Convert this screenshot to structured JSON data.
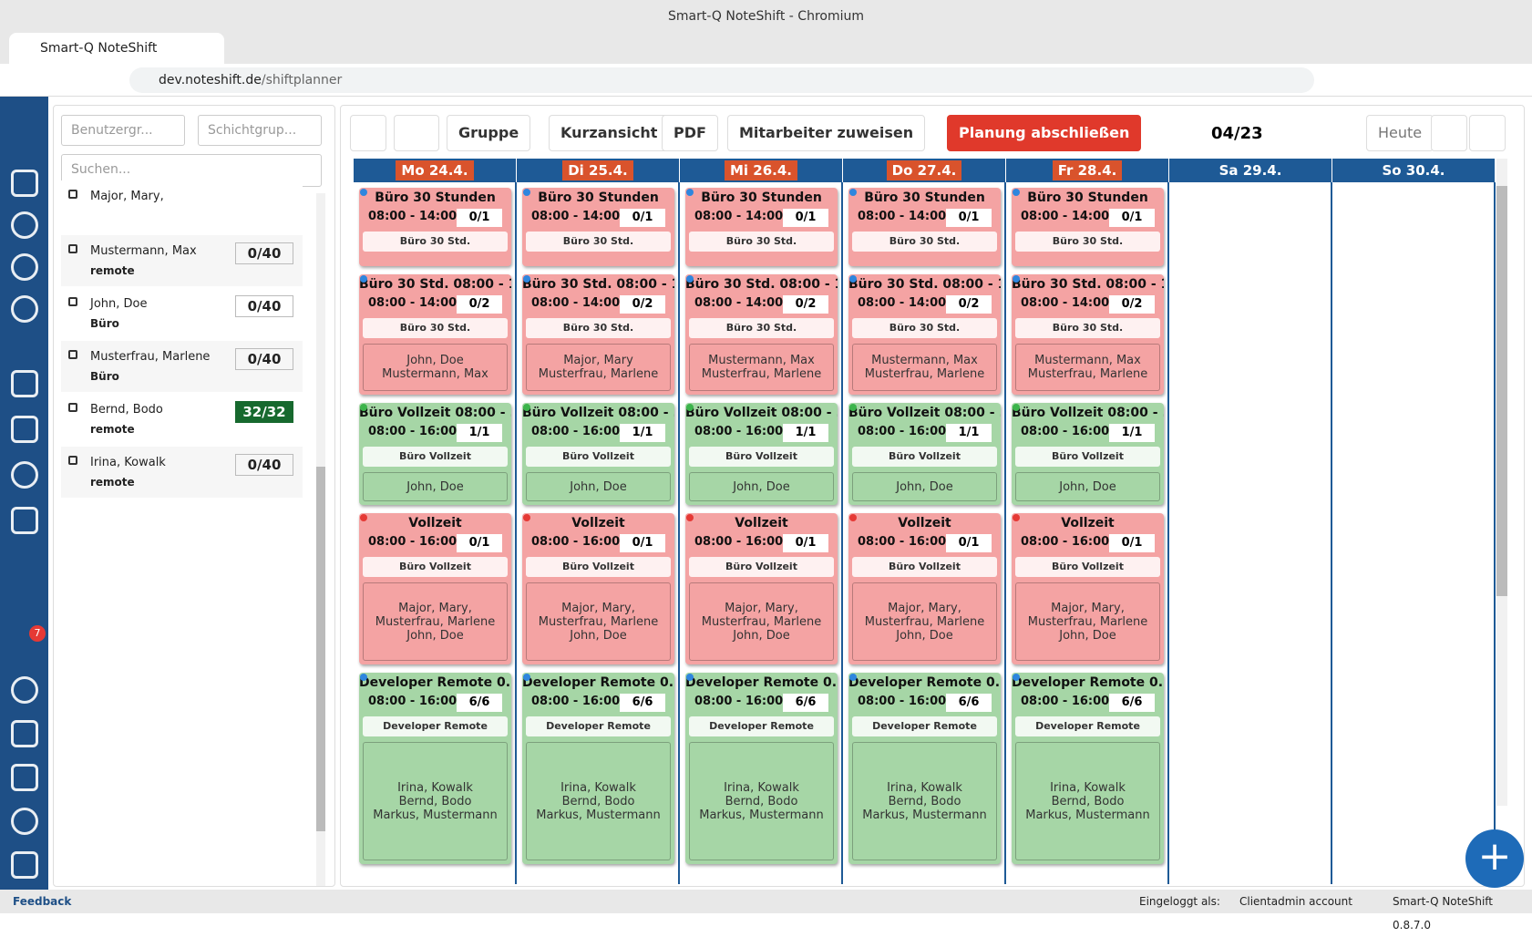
{
  "browser": {
    "window_title": "Smart-Q NoteShift - Chromium",
    "tab_title": "Smart-Q NoteShift",
    "url_host": "dev.noteshift.de",
    "url_path": "/shiftplanner"
  },
  "sidebar": {
    "mail_badge": "7"
  },
  "left_panel": {
    "filter_user_group": "Benutzergr...",
    "filter_shift_group": "Schichtgrup...",
    "search_placeholder": "Suchen...",
    "employees": [
      {
        "name": "Major, Mary,"
      },
      {
        "name": "Mustermann, Max",
        "group": "remote",
        "hours": "0/40"
      },
      {
        "name": "John, Doe",
        "group": "Büro",
        "hours": "0/40"
      },
      {
        "name": "Musterfrau, Marlene",
        "group": "Büro",
        "hours": "0/40"
      },
      {
        "name": "Bernd, Bodo",
        "group": "remote",
        "hours": "32/32",
        "color": "#17692e"
      },
      {
        "name": "Irina, Kowalk",
        "group": "remote",
        "hours": "0/40"
      }
    ]
  },
  "toolbar": {
    "buttons": [
      "Gruppe",
      "Kurzansicht",
      "PDF",
      "Mitarbeiter zuweisen"
    ],
    "finish_button": "Planung abschließen",
    "period": "04/23",
    "today": "Heute"
  },
  "days": [
    {
      "label": "Mo 24.4.",
      "shifts": [
        {
          "title": "Büro 30 Stunden",
          "time": "08:00 - 14:00",
          "count": "0/1",
          "filter": "Büro 30 Std.",
          "color": "#f4a3a3",
          "dot": "#2e86de",
          "staff": []
        },
        {
          "title": "Büro 30 Std. 08:00 - 1...",
          "time": "08:00 - 14:00",
          "count": "0/2",
          "filter": "Büro 30 Std.",
          "color": "#f4a3a3",
          "dot": "#2e86de",
          "staff": [
            "John, Doe",
            "Mustermann, Max"
          ]
        },
        {
          "title": "Büro Vollzeit 08:00 - ...",
          "time": "08:00 - 16:00",
          "count": "1/1",
          "filter": "Büro Vollzeit",
          "color": "#a6d6a6",
          "dot": "#3cb44b",
          "staff": [
            "John, Doe"
          ]
        },
        {
          "title": "Vollzeit",
          "time": "08:00 - 16:00",
          "count": "0/1",
          "filter": "Büro Vollzeit",
          "color": "#f4a3a3",
          "dot": "#e53935",
          "staff": [
            "Major, Mary,",
            "Musterfrau, Marlene",
            "John, Doe"
          ]
        },
        {
          "title": "Developer Remote 0...",
          "time": "08:00 - 16:00",
          "count": "6/6",
          "filter": "Developer Remote",
          "color": "#a6d6a6",
          "dot": "#2e86de",
          "staff": [
            "Irina, Kowalk",
            "Bernd, Bodo",
            "Markus, Mustermann"
          ]
        }
      ]
    },
    {
      "label": "Di 25.4.",
      "shifts": [
        {
          "title": "Büro 30 Stunden",
          "time": "08:00 - 14:00",
          "count": "0/1",
          "filter": "Büro 30 Std.",
          "color": "#f4a3a3",
          "dot": "#2e86de",
          "staff": []
        },
        {
          "title": "Büro 30 Std. 08:00 - 1...",
          "time": "08:00 - 14:00",
          "count": "0/2",
          "filter": "Büro 30 Std.",
          "color": "#f4a3a3",
          "dot": "#2e86de",
          "staff": [
            "Major, Mary",
            "Musterfrau, Marlene"
          ]
        },
        {
          "title": "Büro Vollzeit 08:00 - ...",
          "time": "08:00 - 16:00",
          "count": "1/1",
          "filter": "Büro Vollzeit",
          "color": "#a6d6a6",
          "dot": "#3cb44b",
          "staff": [
            "John, Doe"
          ]
        },
        {
          "title": "Vollzeit",
          "time": "08:00 - 16:00",
          "count": "0/1",
          "filter": "Büro Vollzeit",
          "color": "#f4a3a3",
          "dot": "#e53935",
          "staff": [
            "Major, Mary,",
            "Musterfrau, Marlene",
            "John, Doe"
          ]
        },
        {
          "title": "Developer Remote 0...",
          "time": "08:00 - 16:00",
          "count": "6/6",
          "filter": "Developer Remote",
          "color": "#a6d6a6",
          "dot": "#2e86de",
          "staff": [
            "Irina, Kowalk",
            "Bernd, Bodo",
            "Markus, Mustermann"
          ]
        }
      ]
    },
    {
      "label": "Mi 26.4.",
      "shifts": [
        {
          "title": "Büro 30 Stunden",
          "time": "08:00 - 14:00",
          "count": "0/1",
          "filter": "Büro 30 Std.",
          "color": "#f4a3a3",
          "dot": "#2e86de",
          "staff": []
        },
        {
          "title": "Büro 30 Std. 08:00 - 1...",
          "time": "08:00 - 14:00",
          "count": "0/2",
          "filter": "Büro 30 Std.",
          "color": "#f4a3a3",
          "dot": "#2e86de",
          "staff": [
            "Mustermann, Max",
            "Musterfrau, Marlene"
          ]
        },
        {
          "title": "Büro Vollzeit 08:00 - ...",
          "time": "08:00 - 16:00",
          "count": "1/1",
          "filter": "Büro Vollzeit",
          "color": "#a6d6a6",
          "dot": "#3cb44b",
          "staff": [
            "John, Doe"
          ]
        },
        {
          "title": "Vollzeit",
          "time": "08:00 - 16:00",
          "count": "0/1",
          "filter": "Büro Vollzeit",
          "color": "#f4a3a3",
          "dot": "#e53935",
          "staff": [
            "Major, Mary,",
            "Musterfrau, Marlene",
            "John, Doe"
          ]
        },
        {
          "title": "Developer Remote 0...",
          "time": "08:00 - 16:00",
          "count": "6/6",
          "filter": "Developer Remote",
          "color": "#a6d6a6",
          "dot": "#2e86de",
          "staff": [
            "Irina, Kowalk",
            "Bernd, Bodo",
            "Markus, Mustermann"
          ]
        }
      ]
    },
    {
      "label": "Do 27.4.",
      "shifts": [
        {
          "title": "Büro 30 Stunden",
          "time": "08:00 - 14:00",
          "count": "0/1",
          "filter": "Büro 30 Std.",
          "color": "#f4a3a3",
          "dot": "#2e86de",
          "staff": []
        },
        {
          "title": "Büro 30 Std. 08:00 - 1...",
          "time": "08:00 - 14:00",
          "count": "0/2",
          "filter": "Büro 30 Std.",
          "color": "#f4a3a3",
          "dot": "#2e86de",
          "staff": [
            "Mustermann, Max",
            "Musterfrau, Marlene"
          ]
        },
        {
          "title": "Büro Vollzeit 08:00 - ...",
          "time": "08:00 - 16:00",
          "count": "1/1",
          "filter": "Büro Vollzeit",
          "color": "#a6d6a6",
          "dot": "#3cb44b",
          "staff": [
            "John, Doe"
          ]
        },
        {
          "title": "Vollzeit",
          "time": "08:00 - 16:00",
          "count": "0/1",
          "filter": "Büro Vollzeit",
          "color": "#f4a3a3",
          "dot": "#e53935",
          "staff": [
            "Major, Mary,",
            "Musterfrau, Marlene",
            "John, Doe"
          ]
        },
        {
          "title": "Developer Remote 0...",
          "time": "08:00 - 16:00",
          "count": "6/6",
          "filter": "Developer Remote",
          "color": "#a6d6a6",
          "dot": "#2e86de",
          "staff": [
            "Irina, Kowalk",
            "Bernd, Bodo",
            "Markus, Mustermann"
          ]
        }
      ]
    },
    {
      "label": "Fr 28.4.",
      "shifts": [
        {
          "title": "Büro 30 Stunden",
          "time": "08:00 - 14:00",
          "count": "0/1",
          "filter": "Büro 30 Std.",
          "color": "#f4a3a3",
          "dot": "#2e86de",
          "staff": []
        },
        {
          "title": "Büro 30 Std. 08:00 - 1...",
          "time": "08:00 - 14:00",
          "count": "0/2",
          "filter": "Büro 30 Std.",
          "color": "#f4a3a3",
          "dot": "#2e86de",
          "staff": [
            "Mustermann, Max",
            "Musterfrau, Marlene"
          ]
        },
        {
          "title": "Büro Vollzeit 08:00 - ...",
          "time": "08:00 - 16:00",
          "count": "1/1",
          "filter": "Büro Vollzeit",
          "color": "#a6d6a6",
          "dot": "#3cb44b",
          "staff": [
            "John, Doe"
          ]
        },
        {
          "title": "Vollzeit",
          "time": "08:00 - 16:00",
          "count": "0/1",
          "filter": "Büro Vollzeit",
          "color": "#f4a3a3",
          "dot": "#e53935",
          "staff": [
            "Major, Mary,",
            "Musterfrau, Marlene",
            "John, Doe"
          ]
        },
        {
          "title": "Developer Remote 0...",
          "time": "08:00 - 16:00",
          "count": "6/6",
          "filter": "Developer Remote",
          "color": "#a6d6a6",
          "dot": "#2e86de",
          "staff": [
            "Irina, Kowalk",
            "Bernd, Bodo",
            "Markus, Mustermann"
          ]
        }
      ]
    },
    {
      "label": "Sa 29.4.",
      "shifts": []
    },
    {
      "label": "So 30.4.",
      "shifts": []
    }
  ],
  "footer": {
    "feedback": "Feedback",
    "logged_in_label": "Eingeloggt als:",
    "account": "Clientadmin account",
    "version": "Smart-Q NoteShift 0.8.7.0"
  }
}
